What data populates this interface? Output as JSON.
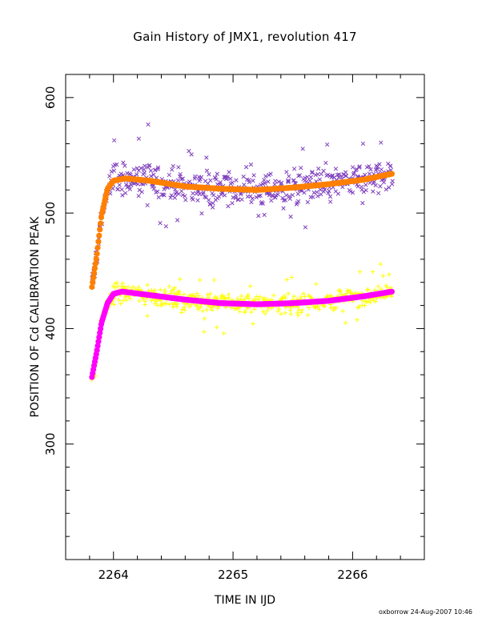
{
  "title": "Gain History of JMX1, revolution 417",
  "footer": "oxborrow 24-Aug-2007 10:46",
  "chart_data": {
    "type": "scatter",
    "title": "Gain History of JMX1, revolution 417",
    "xlabel": "TIME IN IJD",
    "ylabel": "POSITION OF Cd CALIBRATION PEAK",
    "xlim": [
      2263.6,
      2266.6
    ],
    "ylim": [
      200,
      620
    ],
    "x_ticks": [
      2264,
      2265,
      2266
    ],
    "x_tick_labels": [
      "2264",
      "2265",
      "2266"
    ],
    "y_ticks": [
      300,
      400,
      500,
      600
    ],
    "y_tick_labels": [
      "300",
      "400",
      "500",
      "600"
    ],
    "grid": false,
    "series": [
      {
        "marker": "x",
        "color": "#7f3fbf",
        "x_range": [
          2263.82,
          2266.33
        ],
        "fit_values": [
          [
            2263.82,
            436
          ],
          [
            2263.86,
            463
          ],
          [
            2263.9,
            498
          ],
          [
            2263.95,
            521
          ],
          [
            2264.0,
            528
          ],
          [
            2264.1,
            530
          ],
          [
            2264.3,
            528
          ],
          [
            2264.6,
            523
          ],
          [
            2264.9,
            521
          ],
          [
            2265.2,
            520
          ],
          [
            2265.5,
            522
          ],
          [
            2265.8,
            525
          ],
          [
            2266.1,
            529
          ],
          [
            2266.33,
            534
          ]
        ],
        "scatter_spread": 14
      },
      {
        "marker": "line-fit",
        "color": "#ff8000",
        "values": [
          [
            2263.82,
            436
          ],
          [
            2263.86,
            463
          ],
          [
            2263.9,
            498
          ],
          [
            2263.95,
            521
          ],
          [
            2264.0,
            528
          ],
          [
            2264.1,
            530
          ],
          [
            2264.3,
            528
          ],
          [
            2264.6,
            523
          ],
          [
            2264.9,
            521
          ],
          [
            2265.2,
            520
          ],
          [
            2265.5,
            522
          ],
          [
            2265.8,
            525
          ],
          [
            2266.1,
            529
          ],
          [
            2266.33,
            534
          ]
        ]
      },
      {
        "marker": "+",
        "color": "#ffff00",
        "x_range": [
          2263.82,
          2266.33
        ],
        "fit_values": [
          [
            2263.82,
            358
          ],
          [
            2263.86,
            380
          ],
          [
            2263.9,
            405
          ],
          [
            2263.95,
            422
          ],
          [
            2264.0,
            430
          ],
          [
            2264.07,
            432
          ],
          [
            2264.3,
            429
          ],
          [
            2264.6,
            425
          ],
          [
            2264.9,
            422
          ],
          [
            2265.2,
            421
          ],
          [
            2265.5,
            422
          ],
          [
            2265.8,
            424
          ],
          [
            2266.1,
            428
          ],
          [
            2266.33,
            432
          ]
        ],
        "scatter_spread": 8
      },
      {
        "marker": "line-fit",
        "color": "#ff00ff",
        "values": [
          [
            2263.82,
            358
          ],
          [
            2263.86,
            380
          ],
          [
            2263.9,
            405
          ],
          [
            2263.95,
            422
          ],
          [
            2264.0,
            430
          ],
          [
            2264.07,
            432
          ],
          [
            2264.3,
            429
          ],
          [
            2264.6,
            425
          ],
          [
            2264.9,
            422
          ],
          [
            2265.2,
            421
          ],
          [
            2265.5,
            422
          ],
          [
            2265.8,
            424
          ],
          [
            2266.1,
            428
          ],
          [
            2266.33,
            432
          ]
        ]
      }
    ]
  }
}
